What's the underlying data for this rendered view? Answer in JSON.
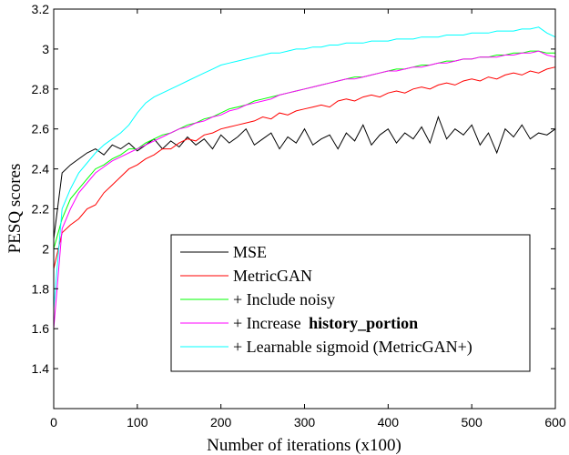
{
  "chart_data": {
    "type": "line",
    "xlabel": "Number of iterations (x100)",
    "ylabel": "PESQ scores",
    "xlim": [
      0,
      600
    ],
    "ylim": [
      1.2,
      3.2
    ],
    "xticks": [
      "0",
      "100",
      "200",
      "300",
      "400",
      "500",
      "600"
    ],
    "yticks": [
      "1.4",
      "1.6",
      "1.8",
      "2",
      "2.2",
      "2.4",
      "2.6",
      "2.8",
      "3",
      "3.2"
    ],
    "grid": false,
    "legend_position": "bottom-right",
    "x": [
      0,
      10,
      20,
      30,
      40,
      50,
      60,
      70,
      80,
      90,
      100,
      110,
      120,
      130,
      140,
      150,
      160,
      170,
      180,
      190,
      200,
      210,
      220,
      230,
      240,
      250,
      260,
      270,
      280,
      290,
      300,
      310,
      320,
      330,
      340,
      350,
      360,
      370,
      380,
      390,
      400,
      410,
      420,
      430,
      440,
      450,
      460,
      470,
      480,
      490,
      500,
      510,
      520,
      530,
      540,
      550,
      560,
      570,
      580,
      590,
      600
    ],
    "series": [
      {
        "name": "MSE",
        "color": "#000000",
        "values": [
          2.05,
          2.38,
          2.42,
          2.45,
          2.48,
          2.5,
          2.47,
          2.52,
          2.5,
          2.53,
          2.49,
          2.52,
          2.55,
          2.5,
          2.54,
          2.51,
          2.56,
          2.52,
          2.55,
          2.5,
          2.57,
          2.53,
          2.56,
          2.6,
          2.52,
          2.55,
          2.58,
          2.5,
          2.56,
          2.53,
          2.6,
          2.52,
          2.55,
          2.57,
          2.5,
          2.58,
          2.54,
          2.62,
          2.52,
          2.57,
          2.6,
          2.53,
          2.58,
          2.55,
          2.61,
          2.53,
          2.66,
          2.55,
          2.6,
          2.57,
          2.62,
          2.52,
          2.58,
          2.48,
          2.6,
          2.56,
          2.62,
          2.55,
          2.58,
          2.57,
          2.6
        ]
      },
      {
        "name": "MetricGAN",
        "color": "#ff0000",
        "values": [
          1.9,
          2.08,
          2.12,
          2.15,
          2.2,
          2.22,
          2.28,
          2.32,
          2.36,
          2.4,
          2.42,
          2.45,
          2.47,
          2.5,
          2.5,
          2.53,
          2.55,
          2.54,
          2.57,
          2.58,
          2.6,
          2.61,
          2.62,
          2.63,
          2.64,
          2.66,
          2.65,
          2.68,
          2.67,
          2.69,
          2.7,
          2.71,
          2.72,
          2.71,
          2.74,
          2.75,
          2.74,
          2.76,
          2.77,
          2.76,
          2.78,
          2.79,
          2.78,
          2.8,
          2.81,
          2.8,
          2.82,
          2.83,
          2.82,
          2.84,
          2.85,
          2.84,
          2.86,
          2.85,
          2.87,
          2.88,
          2.87,
          2.89,
          2.88,
          2.9,
          2.91
        ]
      },
      {
        "name": "+ Include noisy",
        "color": "#00ff00",
        "values": [
          2.0,
          2.15,
          2.25,
          2.3,
          2.35,
          2.4,
          2.42,
          2.45,
          2.47,
          2.5,
          2.5,
          2.53,
          2.55,
          2.57,
          2.58,
          2.6,
          2.62,
          2.63,
          2.65,
          2.66,
          2.68,
          2.7,
          2.71,
          2.72,
          2.74,
          2.75,
          2.76,
          2.77,
          2.78,
          2.79,
          2.8,
          2.81,
          2.82,
          2.83,
          2.84,
          2.85,
          2.86,
          2.86,
          2.87,
          2.88,
          2.89,
          2.9,
          2.9,
          2.91,
          2.92,
          2.92,
          2.93,
          2.94,
          2.94,
          2.95,
          2.95,
          2.96,
          2.96,
          2.97,
          2.97,
          2.98,
          2.98,
          2.99,
          2.99,
          2.98,
          2.98
        ]
      },
      {
        "name": "+ Increase ",
        "name_bold": "history_portion",
        "color": "#ff00ff",
        "values": [
          1.6,
          2.1,
          2.2,
          2.28,
          2.33,
          2.38,
          2.41,
          2.44,
          2.46,
          2.48,
          2.5,
          2.52,
          2.54,
          2.56,
          2.58,
          2.6,
          2.61,
          2.63,
          2.64,
          2.66,
          2.67,
          2.69,
          2.7,
          2.72,
          2.73,
          2.74,
          2.75,
          2.77,
          2.78,
          2.79,
          2.8,
          2.81,
          2.82,
          2.83,
          2.84,
          2.85,
          2.85,
          2.86,
          2.87,
          2.88,
          2.89,
          2.89,
          2.9,
          2.91,
          2.91,
          2.92,
          2.93,
          2.93,
          2.94,
          2.95,
          2.95,
          2.96,
          2.96,
          2.96,
          2.97,
          2.97,
          2.98,
          2.98,
          2.99,
          2.97,
          2.96
        ]
      },
      {
        "name": "+ Learnable sigmoid (MetricGAN+)",
        "color": "#00ffff",
        "values": [
          1.7,
          2.2,
          2.3,
          2.38,
          2.43,
          2.48,
          2.52,
          2.55,
          2.58,
          2.62,
          2.68,
          2.73,
          2.76,
          2.78,
          2.8,
          2.82,
          2.84,
          2.86,
          2.88,
          2.9,
          2.92,
          2.93,
          2.94,
          2.95,
          2.96,
          2.97,
          2.98,
          2.98,
          2.99,
          3.0,
          3.0,
          3.01,
          3.01,
          3.02,
          3.02,
          3.03,
          3.03,
          3.03,
          3.04,
          3.04,
          3.04,
          3.05,
          3.05,
          3.05,
          3.06,
          3.06,
          3.06,
          3.07,
          3.07,
          3.07,
          3.08,
          3.08,
          3.08,
          3.09,
          3.09,
          3.09,
          3.1,
          3.1,
          3.11,
          3.08,
          3.06
        ]
      }
    ]
  }
}
